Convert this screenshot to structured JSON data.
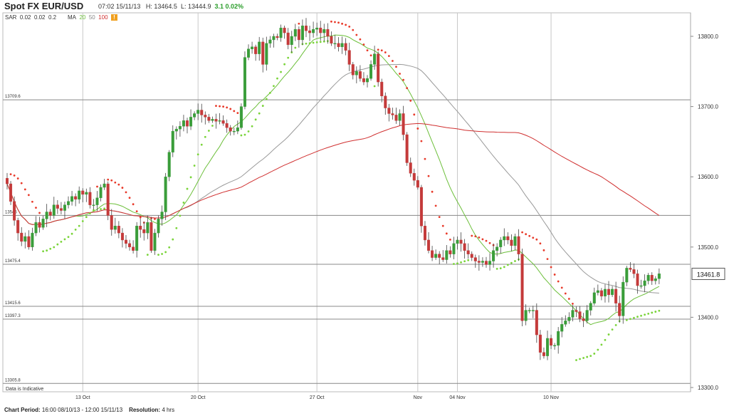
{
  "header": {
    "title": "Spot FX EUR/USD",
    "time": "07:02 15/11/13",
    "high": "H: 13464.5",
    "low": "L: 13444.9",
    "change": "3.1 0.02%"
  },
  "indicators": {
    "sar_label": "SAR",
    "sar_params": [
      "0.02",
      "0.02",
      "0.2"
    ],
    "ma_label": "MA",
    "ma_periods": [
      "20",
      "50",
      "100"
    ],
    "ma_colors": [
      "#6cbf3a",
      "#999999",
      "#d03030"
    ],
    "warn_icon": "warning-icon"
  },
  "footer": {
    "period_label": "Chart Period:",
    "period_value": "16:00 08/10/13 - 12:00 15/11/13",
    "resolution_label": "Resolution:",
    "resolution_value": "4 hrs"
  },
  "indicative_note": "Data is Indicative",
  "colors": {
    "up": "#3a9d3a",
    "down": "#c43a3a",
    "sar": [
      "#e83a2a",
      "#7ad43a"
    ],
    "grid": "#c8c8c8",
    "hline": "#888888"
  },
  "chart_data": {
    "type": "candlestick",
    "title": "Spot FX EUR/USD",
    "ylim": [
      13300,
      13830
    ],
    "y_ticks": [
      13300.0,
      13400.0,
      13500.0,
      13600.0,
      13700.0,
      13800.0
    ],
    "y_tick_labels": [
      "13300.0",
      "13400.0",
      "13500.0",
      "13600.0",
      "13700.0",
      "13800.0"
    ],
    "x_tick_labels": [
      "13 Oct",
      "20 Oct",
      "27 Oct",
      "Nov",
      "04 Nov",
      "10 Nov"
    ],
    "x_tick_index": [
      21,
      53,
      86,
      114,
      125,
      151
    ],
    "last_price_label": "13461.8",
    "horizontal_levels": [
      {
        "value": 13709.6,
        "label": "13709.6"
      },
      {
        "value": 13545.0,
        "label": "13545"
      },
      {
        "value": 13475.4,
        "label": "13475.4"
      },
      {
        "value": 13415.6,
        "label": "13415.6"
      },
      {
        "value": 13397.3,
        "label": "13397.3"
      },
      {
        "value": 13305.8,
        "label": "13305.8"
      }
    ],
    "close": [
      13590,
      13565,
      13538,
      13520,
      13508,
      13515,
      13500,
      13520,
      13535,
      13528,
      13540,
      13550,
      13545,
      13560,
      13555,
      13552,
      13560,
      13565,
      13572,
      13568,
      13580,
      13575,
      13578,
      13560,
      13560,
      13570,
      13585,
      13590,
      13545,
      13525,
      13530,
      13520,
      13510,
      13505,
      13500,
      13495,
      13530,
      13525,
      13520,
      13535,
      13495,
      13520,
      13540,
      13550,
      13600,
      13635,
      13665,
      13668,
      13672,
      13680,
      13672,
      13685,
      13690,
      13695,
      13688,
      13685,
      13680,
      13682,
      13679,
      13680,
      13676,
      13670,
      13665,
      13665,
      13670,
      13700,
      13770,
      13782,
      13785,
      13775,
      13792,
      13760,
      13790,
      13795,
      13800,
      13798,
      13812,
      13805,
      13788,
      13800,
      13810,
      13795,
      13815,
      13808,
      13805,
      13810,
      13812,
      13805,
      13810,
      13800,
      13790,
      13790,
      13785,
      13790,
      13780,
      13760,
      13745,
      13750,
      13740,
      13735,
      13740,
      13760,
      13775,
      13735,
      13715,
      13698,
      13690,
      13688,
      13680,
      13690,
      13660,
      13620,
      13605,
      13595,
      13585,
      13530,
      13510,
      13495,
      13485,
      13490,
      13485,
      13482,
      13495,
      13490,
      13505,
      13510,
      13505,
      13495,
      13490,
      13485,
      13480,
      13478,
      13480,
      13475,
      13480,
      13495,
      13500,
      13510,
      13515,
      13510,
      13502,
      13515,
      13490,
      13395,
      13410,
      13410,
      13410,
      13375,
      13350,
      13345,
      13370,
      13360,
      13360,
      13380,
      13390,
      13395,
      13400,
      13410,
      13408,
      13398,
      13395,
      13410,
      13420,
      13435,
      13438,
      13430,
      13440,
      13432,
      13440,
      13420,
      13402,
      13450,
      13470,
      13468,
      13462,
      13445,
      13445,
      13452,
      13460,
      13452,
      13455,
      13462
    ]
  }
}
